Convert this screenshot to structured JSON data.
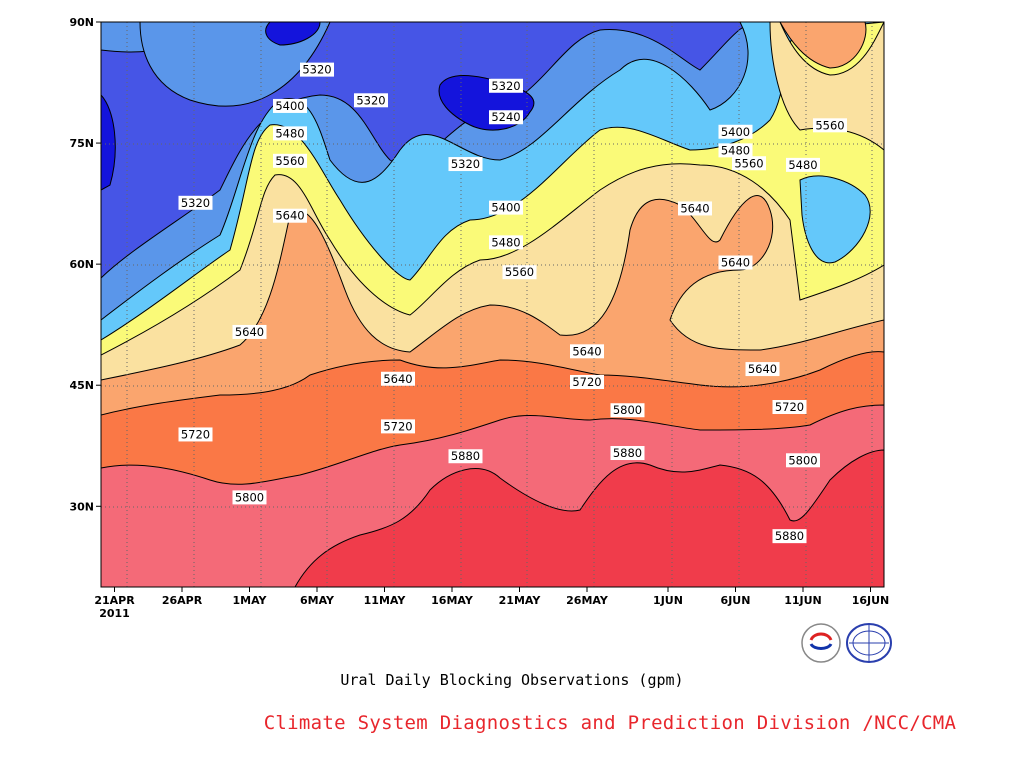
{
  "chart_data": {
    "type": "heatmap",
    "subtype": "filled-contour",
    "title": "Ural Daily Blocking Observations (gpm)",
    "credit": "Climate System Diagnostics and Prediction Division /NCC/CMA",
    "x_axis": {
      "ticks": [
        "21APR",
        "26APR",
        "1MAY",
        "6MAY",
        "11MAY",
        "16MAY",
        "21MAY",
        "26MAY",
        "1JUN",
        "6JUN",
        "11JUN",
        "16JUN"
      ],
      "year_label": "2011",
      "range": [
        "2011-04-20",
        "2011-06-17"
      ]
    },
    "y_axis": {
      "ticks": [
        "30N",
        "45N",
        "60N",
        "75N",
        "90N"
      ],
      "range": [
        20,
        90
      ]
    },
    "grid": "dotted",
    "contour_levels": [
      5240,
      5320,
      5400,
      5480,
      5560,
      5640,
      5720,
      5800,
      5880
    ],
    "level_colors": [
      "#1414dc",
      "#4655e6",
      "#5a96ea",
      "#64c8fa",
      "#fafa78",
      "#fae1a0",
      "#faa56e",
      "#fa7846",
      "#f46a78",
      "#f03c4b"
    ],
    "contour_labels": [
      {
        "value": "5320",
        "date": "2011-05-06",
        "lat": 84.1
      },
      {
        "value": "5320",
        "date": "2011-05-10",
        "lat": 80.3
      },
      {
        "value": "5320",
        "date": "2011-05-20",
        "lat": 82.1
      },
      {
        "value": "5240",
        "date": "2011-05-20",
        "lat": 78.2
      },
      {
        "value": "5400",
        "date": "2011-05-04",
        "lat": 79.6
      },
      {
        "value": "5480",
        "date": "2011-05-04",
        "lat": 76.2
      },
      {
        "value": "5560",
        "date": "2011-05-04",
        "lat": 72.8
      },
      {
        "value": "5640",
        "date": "2011-05-04",
        "lat": 66.0
      },
      {
        "value": "5320",
        "date": "2011-04-27",
        "lat": 67.6
      },
      {
        "value": "5320",
        "date": "2011-05-17",
        "lat": 72.4
      },
      {
        "value": "5400",
        "date": "2011-05-20",
        "lat": 67.0
      },
      {
        "value": "5480",
        "date": "2011-05-20",
        "lat": 62.7
      },
      {
        "value": "5560",
        "date": "2011-05-21",
        "lat": 59.0
      },
      {
        "value": "5640",
        "date": "2011-05-01",
        "lat": 51.6
      },
      {
        "value": "5640",
        "date": "2011-05-12",
        "lat": 45.8
      },
      {
        "value": "5640",
        "date": "2011-05-26",
        "lat": 49.2
      },
      {
        "value": "5720",
        "date": "2011-05-26",
        "lat": 45.4
      },
      {
        "value": "5720",
        "date": "2011-05-12",
        "lat": 39.9
      },
      {
        "value": "5720",
        "date": "2011-04-27",
        "lat": 38.9
      },
      {
        "value": "5800",
        "date": "2011-05-01",
        "lat": 31.1
      },
      {
        "value": "5880",
        "date": "2011-05-17",
        "lat": 36.2
      },
      {
        "value": "5800",
        "date": "2011-05-29",
        "lat": 41.9
      },
      {
        "value": "5880",
        "date": "2011-05-29",
        "lat": 36.6
      },
      {
        "value": "5400",
        "date": "2011-06-06",
        "lat": 76.4
      },
      {
        "value": "5480",
        "date": "2011-06-06",
        "lat": 74.1
      },
      {
        "value": "5560",
        "date": "2011-06-07",
        "lat": 72.5
      },
      {
        "value": "5640",
        "date": "2011-06-03",
        "lat": 66.9
      },
      {
        "value": "5640",
        "date": "2011-06-06",
        "lat": 60.2
      },
      {
        "value": "5640",
        "date": "2011-06-08",
        "lat": 47.0
      },
      {
        "value": "5480",
        "date": "2011-06-11",
        "lat": 72.3
      },
      {
        "value": "5560",
        "date": "2011-06-13",
        "lat": 77.2
      },
      {
        "value": "5720",
        "date": "2011-06-10",
        "lat": 42.3
      },
      {
        "value": "5800",
        "date": "2011-06-11",
        "lat": 35.7
      },
      {
        "value": "5880",
        "date": "2011-06-10",
        "lat": 26.3
      }
    ],
    "logos": [
      "BCC",
      "NCC"
    ]
  }
}
